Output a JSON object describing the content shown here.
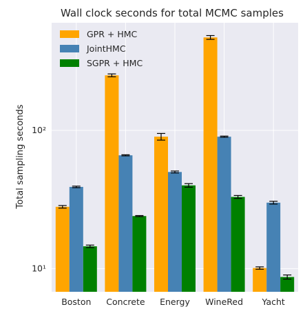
{
  "chart_data": {
    "type": "bar",
    "title": "Wall clock seconds for total MCMC samples",
    "xlabel": "",
    "ylabel": "Total sampling seconds",
    "yscale": "log",
    "ylim": [
      6.8,
      600
    ],
    "yticks": [
      {
        "value": 10,
        "label": "10¹"
      },
      {
        "value": 100,
        "label": "10²"
      }
    ],
    "categories": [
      "Boston",
      "Concrete",
      "Energy",
      "WineRed",
      "Yacht"
    ],
    "series": [
      {
        "name": "GPR + HMC",
        "color": "#FFA500",
        "values": [
          28.0,
          250.0,
          90.0,
          470.0,
          10.1
        ],
        "errors": [
          0.6,
          6.0,
          5.0,
          15.0,
          0.2
        ]
      },
      {
        "name": "JointHMC",
        "color": "#4682B4",
        "values": [
          39.0,
          66.0,
          50.0,
          90.0,
          30.0
        ],
        "errors": [
          0.5,
          0.6,
          0.8,
          0.9,
          0.7
        ]
      },
      {
        "name": "SGPR + HMC",
        "color": "#008000",
        "values": [
          14.5,
          24.0,
          40.0,
          33.0,
          8.7
        ],
        "errors": [
          0.3,
          0.2,
          1.2,
          0.8,
          0.3
        ]
      }
    ],
    "legend_position": "top-left",
    "grid": true,
    "style": {
      "background": "#EAEAF2",
      "grid_color": "#FFFFFF"
    }
  }
}
